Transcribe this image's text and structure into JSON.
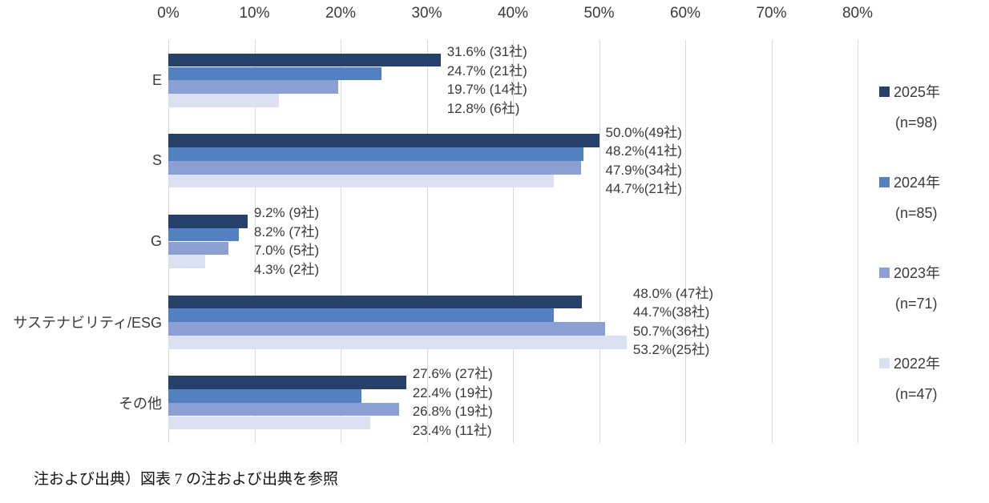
{
  "chart_data": {
    "type": "bar",
    "orientation": "horizontal",
    "title": "",
    "categories": [
      "E",
      "S",
      "G",
      "サステナビリティ/ESG",
      "その他"
    ],
    "series": [
      {
        "name": "2025年",
        "sub": "(n=98)",
        "color": "#27416B",
        "values": [
          31.6,
          50.0,
          9.2,
          48.0,
          27.6
        ],
        "counts": [
          31,
          49,
          9,
          47,
          27
        ]
      },
      {
        "name": "2024年",
        "sub": "(n=85)",
        "color": "#5380C1",
        "values": [
          24.7,
          48.2,
          8.2,
          44.7,
          22.4
        ],
        "counts": [
          21,
          41,
          7,
          38,
          19
        ]
      },
      {
        "name": "2023年",
        "sub": "(n=71)",
        "color": "#8B9FD3",
        "values": [
          19.7,
          47.9,
          7.0,
          50.7,
          26.8
        ],
        "counts": [
          14,
          34,
          5,
          36,
          19
        ]
      },
      {
        "name": "2022年",
        "sub": "(n=47)",
        "color": "#DBE1F1",
        "values": [
          12.8,
          44.7,
          4.3,
          53.2,
          23.4
        ],
        "counts": [
          6,
          21,
          2,
          25,
          11
        ]
      }
    ],
    "data_labels": [
      [
        "31.6% (31社)",
        "24.7% (21社)",
        "19.7% (14社)",
        "12.8% (6社)"
      ],
      [
        "50.0%(49社)",
        "48.2%(41社)",
        "47.9%(34社)",
        "44.7%(21社)"
      ],
      [
        "9.2% (9社)",
        "8.2% (7社)",
        "7.0% (5社)",
        "4.3% (2社)"
      ],
      [
        "48.0% (47社)",
        "44.7%(38社)",
        "50.7%(36社)",
        "53.2%(25社)"
      ],
      [
        "27.6% (27社)",
        "22.4% (19社)",
        "26.8% (19社)",
        "23.4% (11社)"
      ]
    ],
    "x_axis": {
      "position": "top",
      "min": 0,
      "max": 80,
      "tick_step": 10,
      "ticks": [
        "0%",
        "10%",
        "20%",
        "30%",
        "40%",
        "50%",
        "60%",
        "70%",
        "80%"
      ],
      "grid": true
    },
    "legend": {
      "position": "right"
    },
    "colors": {
      "grid": "#D9D9D9",
      "text": "#3A3A3A"
    }
  },
  "footer_note": "注および出典）図表 7 の注および出典を参照"
}
